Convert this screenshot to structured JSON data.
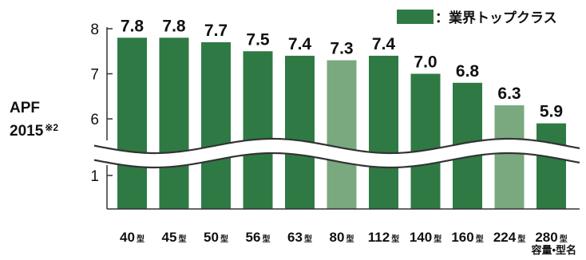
{
  "chart_data": {
    "type": "bar",
    "categories": [
      "40",
      "45",
      "50",
      "56",
      "63",
      "80",
      "112",
      "140",
      "160",
      "224",
      "280"
    ],
    "category_suffix": "型",
    "values": [
      7.8,
      7.8,
      7.7,
      7.5,
      7.4,
      7.3,
      7.4,
      7.0,
      6.8,
      6.3,
      5.9
    ],
    "value_labels": [
      "7.8",
      "7.8",
      "7.7",
      "7.5",
      "7.4",
      "7.3",
      "7.4",
      "7.0",
      "6.8",
      "6.3",
      "5.9"
    ],
    "top_class": [
      true,
      true,
      true,
      true,
      true,
      false,
      true,
      true,
      true,
      false,
      true
    ],
    "ylabel_line1": "APF",
    "ylabel_line2": "2015",
    "ylabel_note": "※2",
    "xlabel": "容量•型名",
    "yticks": [
      "8",
      "7",
      "6",
      "1"
    ],
    "ylim_upper": [
      5.5,
      8
    ],
    "axis_break": true,
    "legend": {
      "label": "：業界トップクラス",
      "position": "top-right"
    },
    "colors": {
      "top_class": "#2f7a44",
      "other": "#7aa97f",
      "axis": "#333333",
      "text": "#111111"
    }
  }
}
